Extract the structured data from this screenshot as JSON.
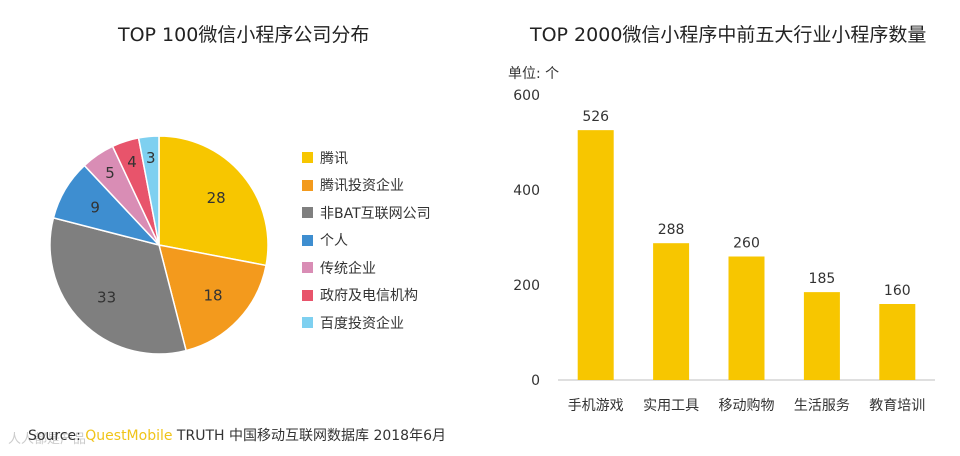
{
  "chart_data": [
    {
      "type": "pie",
      "title": "TOP 100微信小程序公司分布",
      "categories": [
        "腾讯",
        "腾讯投资企业",
        "非BAT互联网公司",
        "个人",
        "传统企业",
        "政府及电信机构",
        "百度投资企业"
      ],
      "values": [
        28,
        18,
        33,
        9,
        5,
        4,
        3
      ],
      "colors": [
        "#F7C600",
        "#F39A1D",
        "#7F7F7F",
        "#3E8ED0",
        "#D98DB5",
        "#E8546B",
        "#7ED0F0"
      ],
      "legend": "right"
    },
    {
      "type": "bar",
      "title": "TOP 2000微信小程序中前五大行业小程序数量",
      "ylabel": "单位: 个",
      "categories": [
        "手机游戏",
        "实用工具",
        "移动购物",
        "生活服务",
        "教育培训"
      ],
      "values": [
        526,
        288,
        260,
        185,
        160
      ],
      "ylim": [
        0,
        600
      ],
      "yticks": [
        "0",
        "200",
        "400",
        "600"
      ],
      "color": "#F7C600",
      "grid": false
    }
  ],
  "source": {
    "prefix": "Source: ",
    "brand": "QuestMobile",
    "text": " TRUTH 中国移动互联网数据库 2018年6月"
  },
  "watermark": "人人都是产品"
}
